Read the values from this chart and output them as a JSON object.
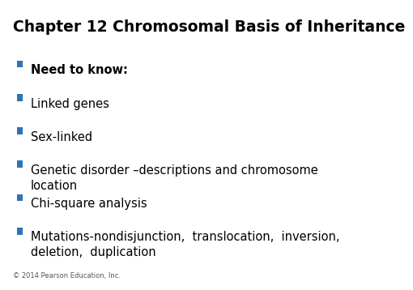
{
  "title": "Chapter 12 Chromosomal Basis of Inheritance",
  "background_color": "#ffffff",
  "title_color": "#000000",
  "title_fontsize": 13.5,
  "title_bold": true,
  "bullet_color": "#2E74B5",
  "bullet_text_color": "#000000",
  "bullet_fontsize": 10.5,
  "bullets": [
    {
      "text": "Need to know:",
      "bold": true
    },
    {
      "text": "Linked genes",
      "bold": false
    },
    {
      "text": "Sex-linked",
      "bold": false
    },
    {
      "text": "Genetic disorder –descriptions and chromosome\nlocation",
      "bold": false
    },
    {
      "text": "Chi-square analysis",
      "bold": false
    },
    {
      "text": "Mutations-nondisjunction,  translocation,  inversion,\ndeletion,  duplication",
      "bold": false
    }
  ],
  "footer": "© 2014 Pearson Education, Inc.",
  "footer_fontsize": 6,
  "footer_color": "#555555"
}
